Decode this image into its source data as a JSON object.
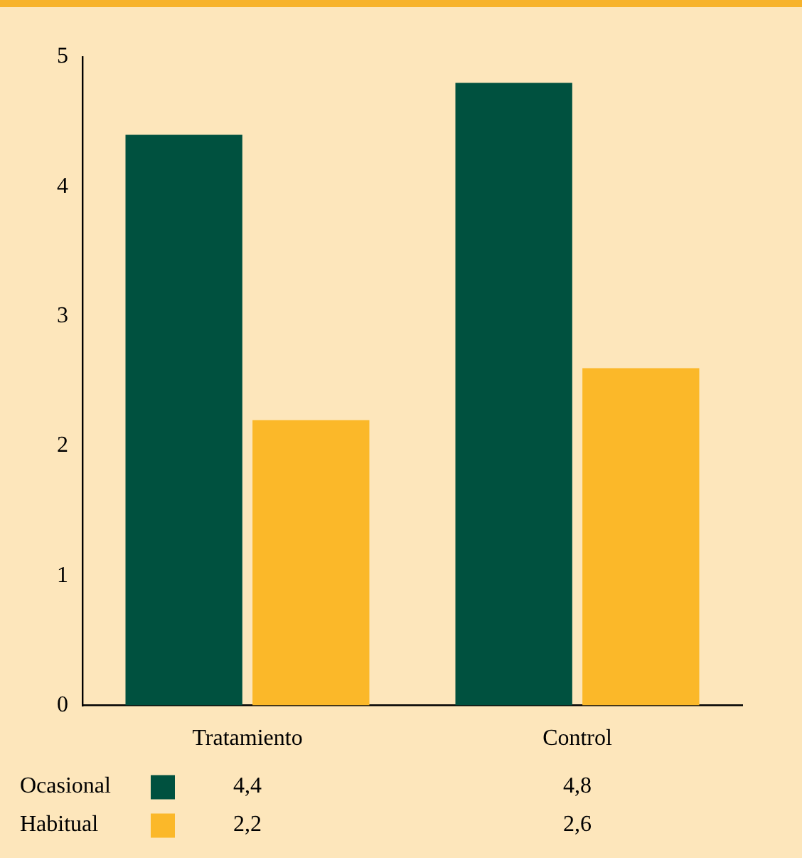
{
  "chart_data": {
    "type": "bar",
    "categories": [
      "Tratamiento",
      "Control"
    ],
    "series": [
      {
        "name": "Ocasional",
        "color": "#00513f",
        "values": [
          4.4,
          4.8
        ],
        "value_labels": [
          "4,4",
          "4,8"
        ]
      },
      {
        "name": "Habitual",
        "color": "#fbb829",
        "values": [
          2.2,
          2.6
        ],
        "value_labels": [
          "2,2",
          "2,6"
        ]
      }
    ],
    "ylim": [
      0,
      5
    ],
    "yticks": [
      0,
      1,
      2,
      3,
      4,
      5
    ],
    "grid": false,
    "legend": "bottom left"
  }
}
